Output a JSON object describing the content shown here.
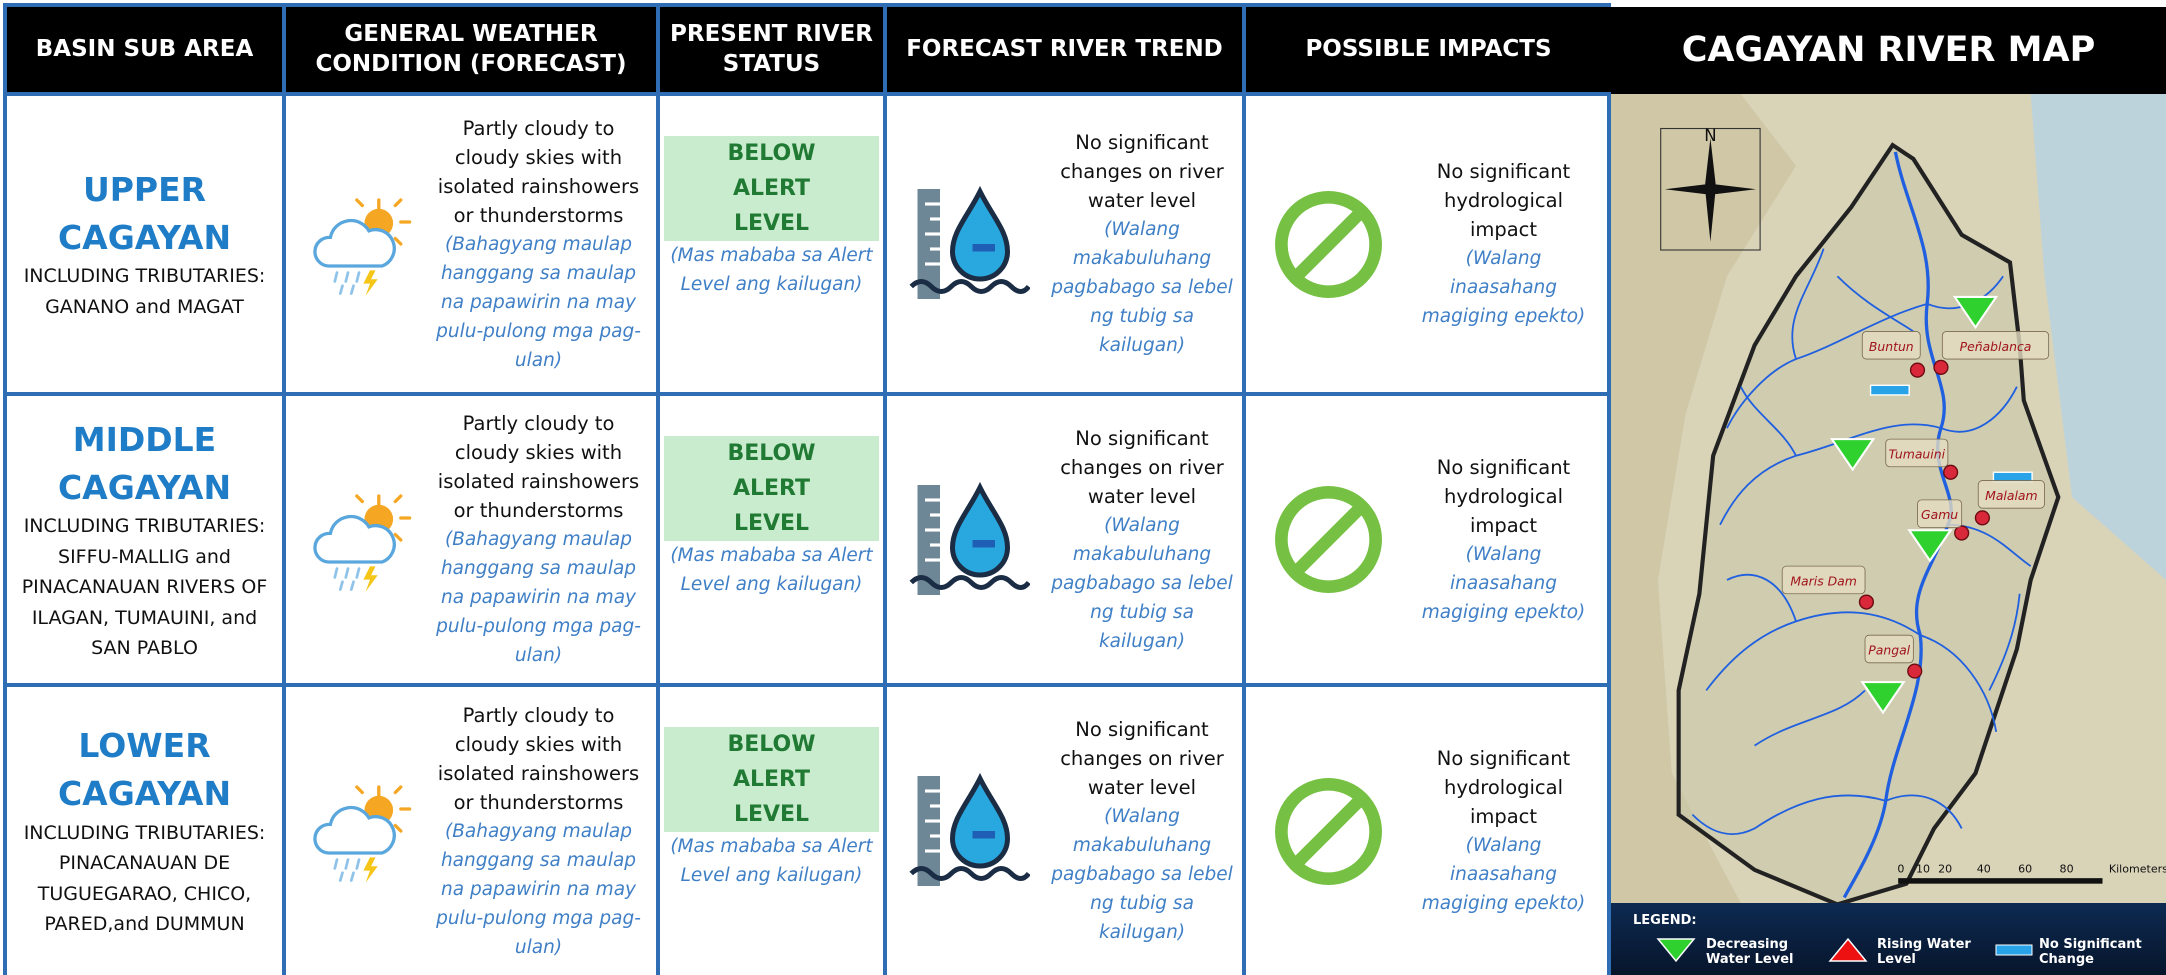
{
  "header": {
    "columns": [
      "BASIN SUB AREA",
      "GENERAL WEATHER CONDITION (FORECAST)",
      "PRESENT RIVER STATUS",
      "FORECAST RIVER TREND",
      "POSSIBLE IMPACTS"
    ],
    "map_title": "CAGAYAN RIVER MAP"
  },
  "rows": [
    {
      "area": "UPPER CAGAYAN",
      "tributaries": "INCLUDING TRIBUTARIES: GANANO and MAGAT",
      "weather": "Partly cloudy to cloudy skies with isolated rainshowers or thunderstorms",
      "weather_local": "(Bahagyang maulap hanggang sa maulap na papawirin na may pulu-pulong mga pag-ulan)",
      "status": "BELOW ALERT LEVEL",
      "status_local": "(Mas mababa sa Alert Level ang kailugan)",
      "trend": "No significant changes on river water level",
      "trend_local": "(Walang makabuluhang pagbabago sa lebel ng tubig sa kailugan)",
      "impact": "No significant hydrological impact",
      "impact_local": "(Walang inaasahang magiging epekto)"
    },
    {
      "area": "MIDDLE CAGAYAN",
      "tributaries": "INCLUDING TRIBUTARIES: SIFFU-MALLIG and PINACANAUAN RIVERS OF ILAGAN, TUMAUINI, and SAN PABLO",
      "weather": "Partly cloudy to cloudy skies with isolated rainshowers or thunderstorms",
      "weather_local": "(Bahagyang maulap hanggang sa maulap na papawirin na may pulu-pulong mga pag-ulan)",
      "status": "BELOW ALERT LEVEL",
      "status_local": "(Mas mababa sa Alert Level ang kailugan)",
      "trend": "No significant changes on river water level",
      "trend_local": "(Walang makabuluhang pagbabago sa lebel ng tubig sa kailugan)",
      "impact": "No significant hydrological impact",
      "impact_local": "(Walang inaasahang magiging epekto)"
    },
    {
      "area": "LOWER CAGAYAN",
      "tributaries": "INCLUDING TRIBUTARIES: PINACANAUAN DE TUGUEGARAO, CHICO, PARED,and DUMMUN",
      "weather": "Partly cloudy to cloudy skies with isolated rainshowers or thunderstorms",
      "weather_local": "(Bahagyang maulap hanggang sa maulap na papawirin na may pulu-pulong mga pag-ulan)",
      "status": "BELOW ALERT LEVEL",
      "status_local": "(Mas mababa sa Alert Level ang kailugan)",
      "trend": "No significant changes on river water level",
      "trend_local": "(Walang makabuluhang pagbabago sa lebel ng tubig sa kailugan)",
      "impact": "No significant hydrological impact",
      "impact_local": "(Walang inaasahang magiging epekto)"
    }
  ],
  "map": {
    "compass": "N",
    "stations": [
      "Buntun",
      "Peñablanca",
      "Tumauini",
      "Malalam",
      "Gamu",
      "Maris Dam",
      "Pangal"
    ],
    "scale": [
      "0",
      "10",
      "20",
      "40",
      "60",
      "80",
      "Kilometers"
    ],
    "legend": {
      "title": "LEGEND:",
      "items": [
        "Decreasing Water Level",
        "Rising Water Level",
        "No Significant Change"
      ]
    }
  }
}
